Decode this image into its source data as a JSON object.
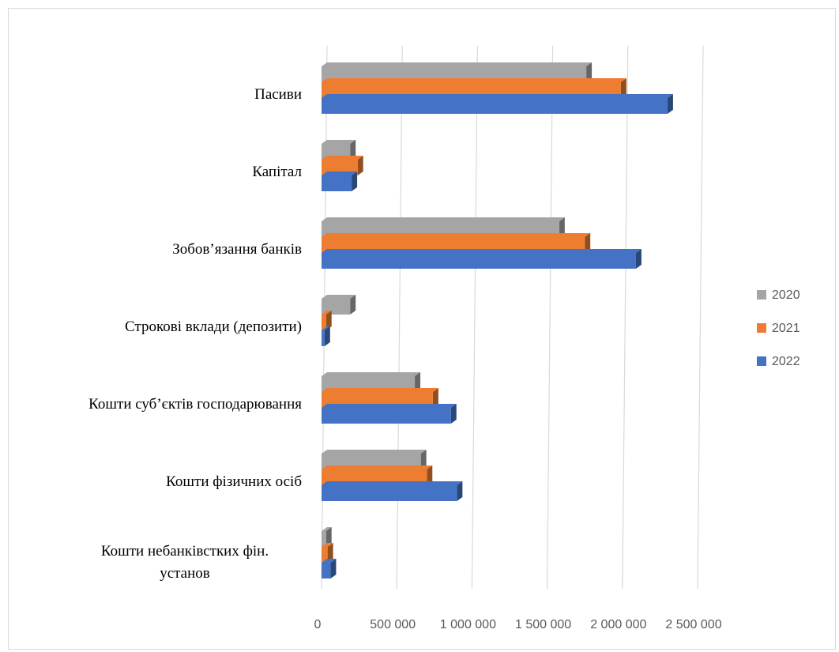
{
  "chart_data": {
    "type": "bar",
    "orientation": "horizontal",
    "style": "3d-clustered",
    "categories": [
      "Пасиви",
      "Капітал",
      "Зобов’язання банків",
      "Строкові вклади (депозити)",
      "Кошти суб’єктів господарювання",
      "Кошти фізичних осіб",
      [
        "Кошти небанківстких фін.",
        "установ"
      ]
    ],
    "series": [
      {
        "name": "2020",
        "color": "#a5a5a5",
        "values": [
          1760000,
          190000,
          1580000,
          190000,
          620000,
          660000,
          30000
        ]
      },
      {
        "name": "2021",
        "color": "#ed7d31",
        "values": [
          1990000,
          240000,
          1750000,
          30000,
          740000,
          700000,
          40000
        ]
      },
      {
        "name": "2022",
        "color": "#4472c4",
        "values": [
          2300000,
          200000,
          2090000,
          20000,
          860000,
          900000,
          60000
        ]
      }
    ],
    "x_ticks": [
      "0",
      "500 000",
      "1 000 000",
      "1 500 000",
      "2 000 000",
      "2 500 000"
    ],
    "xlim": [
      0,
      2500000
    ],
    "grid": true,
    "legend_position": "right"
  }
}
